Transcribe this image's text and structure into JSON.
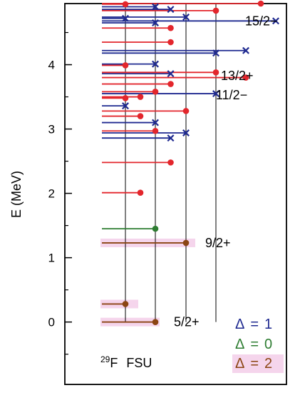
{
  "chart_data": {
    "type": "level-scheme",
    "ylabel": "E (MeV)",
    "ylim": [
      -0.97,
      4.95
    ],
    "yticks": [
      0,
      1,
      2,
      3,
      4
    ],
    "nucleus_mass": "29",
    "nucleus_symbol": "F",
    "model_label": "FSU",
    "colors": {
      "delta1": "#1f2a90",
      "delta0": "#2e7d32",
      "delta2": "#8b4513",
      "dot": "#e3262c",
      "level_red": "#e3262c",
      "highlight": "#f5d5ec"
    },
    "legend": [
      {
        "delta": "Δ",
        "eq": "=",
        "value": "1",
        "color": "#1f2a90"
      },
      {
        "delta": "Δ",
        "eq": "=",
        "value": "0",
        "color": "#2e7d32"
      },
      {
        "delta": "Δ",
        "eq": "=",
        "value": "2",
        "color": "#8b4513"
      }
    ],
    "columns": [
      {
        "name": "5/2+",
        "label": "5/2+",
        "label_energy": 0.0
      },
      {
        "name": "9/2+",
        "label": "9/2+",
        "label_energy": 1.23
      },
      {
        "name": "11/2-",
        "label": "11/2−",
        "label_energy": 3.53
      },
      {
        "name": "13/2+",
        "label": "13/2+",
        "label_energy": 3.83
      },
      {
        "name": "15/2-",
        "label": "15/2−",
        "label_energy": 4.68
      }
    ],
    "levels": [
      {
        "energy": 0.0,
        "column": 1,
        "color": "delta2",
        "marker": "dot"
      },
      {
        "energy": 0.28,
        "column": 0,
        "color": "delta2",
        "marker": "dot"
      },
      {
        "energy": 1.23,
        "column": 2,
        "color": "delta2",
        "marker": "dot"
      },
      {
        "energy": 1.45,
        "column": 1,
        "color": "delta0",
        "marker": "dot"
      },
      {
        "energy": 2.01,
        "column": 0.5,
        "color": "level_red",
        "marker": "dot"
      },
      {
        "energy": 2.48,
        "column": 1.5,
        "color": "level_red",
        "marker": "dot"
      },
      {
        "energy": 2.86,
        "column": 1.5,
        "color": "delta1",
        "marker": "x"
      },
      {
        "energy": 2.94,
        "column": 2,
        "color": "delta1",
        "marker": "x"
      },
      {
        "energy": 2.97,
        "column": 1,
        "color": "level_red",
        "marker": "dot"
      },
      {
        "energy": 3.1,
        "column": 1,
        "color": "delta1",
        "marker": "x"
      },
      {
        "energy": 3.2,
        "column": 0.5,
        "color": "level_red",
        "marker": "dot"
      },
      {
        "energy": 3.28,
        "column": 2,
        "color": "level_red",
        "marker": "dot"
      },
      {
        "energy": 3.36,
        "column": 0,
        "color": "delta1",
        "marker": "x"
      },
      {
        "energy": 3.48,
        "column": 0,
        "color": "level_red",
        "marker": "dot"
      },
      {
        "energy": 3.5,
        "column": 0.5,
        "color": "level_red",
        "marker": "dot"
      },
      {
        "energy": 3.55,
        "column": 3,
        "color": "delta1",
        "marker": "x"
      },
      {
        "energy": 3.58,
        "column": 1,
        "color": "level_red",
        "marker": "dot"
      },
      {
        "energy": 3.7,
        "column": 1.5,
        "color": "level_red",
        "marker": "dot"
      },
      {
        "energy": 3.8,
        "column": 4,
        "color": "level_red",
        "marker": "dot"
      },
      {
        "energy": 3.86,
        "column": 1.5,
        "color": "delta1",
        "marker": "x"
      },
      {
        "energy": 3.88,
        "column": 3,
        "color": "level_red",
        "marker": "dot"
      },
      {
        "energy": 3.99,
        "column": 0,
        "color": "level_red",
        "marker": "dot"
      },
      {
        "energy": 4.01,
        "column": 1,
        "color": "delta1",
        "marker": "x"
      },
      {
        "energy": 4.18,
        "column": 3,
        "color": "delta1",
        "marker": "x"
      },
      {
        "energy": 4.22,
        "column": 4,
        "color": "delta1",
        "marker": "x"
      },
      {
        "energy": 4.35,
        "column": 1.5,
        "color": "level_red",
        "marker": "dot"
      },
      {
        "energy": 4.57,
        "column": 1.5,
        "color": "level_red",
        "marker": "dot"
      },
      {
        "energy": 4.65,
        "column": 1,
        "color": "delta1",
        "marker": "x"
      },
      {
        "energy": 4.68,
        "column": 5,
        "color": "delta1",
        "marker": "x"
      },
      {
        "energy": 4.72,
        "column": 0,
        "color": "delta1",
        "marker": "x"
      },
      {
        "energy": 4.74,
        "column": 2,
        "color": "delta1",
        "marker": "x"
      },
      {
        "energy": 4.84,
        "column": 3,
        "color": "level_red",
        "marker": "dot"
      },
      {
        "energy": 4.86,
        "column": 1.5,
        "color": "delta1",
        "marker": "x"
      },
      {
        "energy": 4.9,
        "column": 1,
        "color": "delta1",
        "marker": "x"
      },
      {
        "energy": 4.94,
        "column": 0,
        "color": "level_red",
        "marker": "dot"
      },
      {
        "energy": 4.95,
        "column": 4.5,
        "color": "level_red",
        "marker": "dot"
      }
    ]
  }
}
